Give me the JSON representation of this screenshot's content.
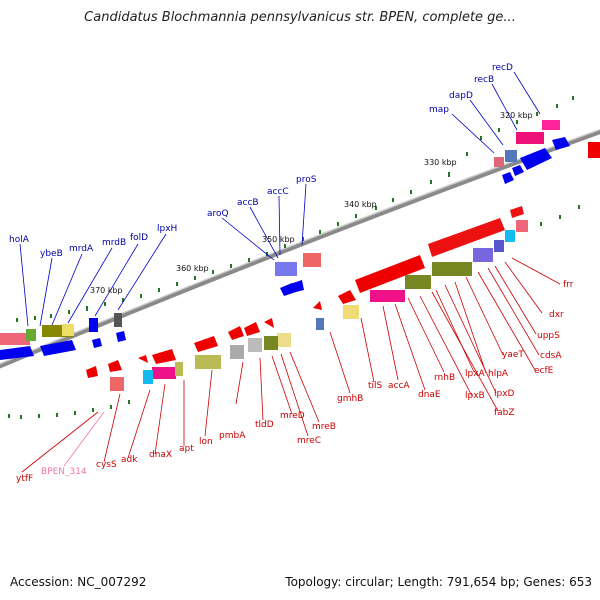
{
  "title": "Candidatus Blochmannia pennsylvanicus str. BPEN, complete ge...",
  "footer": {
    "accession": "Accession: NC_007292",
    "topology": "Topology: circular; Length: 791,654 bp; Genes: 653"
  },
  "scale_labels": [
    "320 kbp",
    "330 kbp",
    "340 kbp",
    "350 kbp",
    "360 kbp",
    "370 kbp"
  ],
  "outer_genes": [
    "recD",
    "recB",
    "dapD",
    "map",
    "proS",
    "accC",
    "accB",
    "aroQ",
    "lpxH",
    "folD",
    "mrdB",
    "mrdA",
    "ybeB",
    "holA"
  ],
  "inner_genes": [
    "frr",
    "dxr",
    "uppS",
    "cdsA",
    "ecfE",
    "yaeT",
    "hlpA",
    "lpxD",
    "lpxA",
    "fabZ",
    "lpxB",
    "rnhB",
    "dnaE",
    "accA",
    "tilS",
    "gmhB",
    "mreB",
    "mreC",
    "mreD",
    "tldD",
    "pmbA",
    "lon",
    "apt",
    "dnaX",
    "adk",
    "cysS",
    "BPEN_314",
    "ytfF"
  ],
  "colors": {
    "outer_label": "#0000aa",
    "inner_label": "#cc0000",
    "pseudo_label": "#ee77aa",
    "backbone": "#888888"
  }
}
